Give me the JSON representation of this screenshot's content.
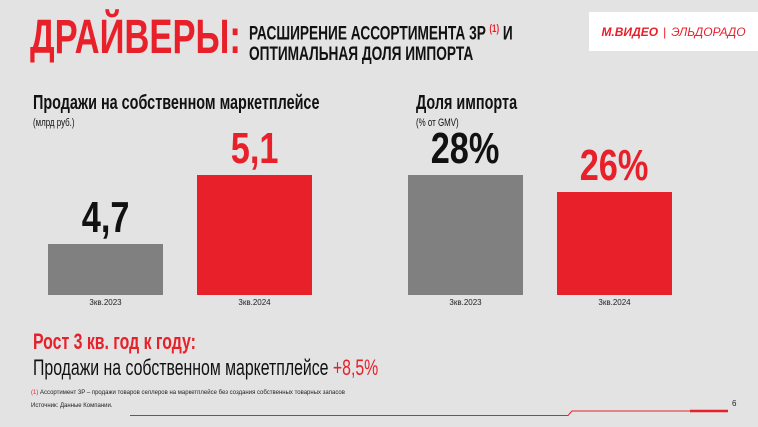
{
  "header": {
    "title_main": "ДРАЙВЕРЫ:",
    "title_sub_line1": "РАСШИРЕНИЕ АССОРТИМЕНТА 3P",
    "title_sub_marker": "(1)",
    "title_sub_line1_end": "И",
    "title_sub_line2": "ОПТИМАЛЬНАЯ ДОЛЯ ИМПОРТА",
    "logo_left": "М.ВИДЕО",
    "logo_sep": "|",
    "logo_right": "ЭЛЬДОРАДО"
  },
  "colors": {
    "accent": "#e8202a",
    "gray_bar": "#808080",
    "background": "#e3e3e3"
  },
  "chart_data": [
    {
      "type": "bar",
      "title": "Продажи на собственном маркетплейсе",
      "subtitle": "(млрд руб.)",
      "categories": [
        "3кв.2023",
        "3кв.2024"
      ],
      "values": [
        4.7,
        5.1
      ],
      "value_labels": [
        "4,7",
        "5,1"
      ],
      "bar_colors": [
        "#808080",
        "#e8202a"
      ],
      "ylim": [
        4.4,
        5.1
      ],
      "grid": false
    },
    {
      "type": "bar",
      "title": "Доля импорта",
      "subtitle": "(% от GMV)",
      "categories": [
        "3кв.2023",
        "3кв.2024"
      ],
      "values": [
        28,
        26
      ],
      "value_labels": [
        "28%",
        "26%"
      ],
      "bar_colors": [
        "#808080",
        "#e8202a"
      ],
      "ylim": [
        14,
        28
      ],
      "grid": false
    }
  ],
  "growth": {
    "title": "Рост 3 кв. год к году:",
    "text": "Продажи на собственном маркетплейсе",
    "value": "+8,5%"
  },
  "footer": {
    "footnote_marker": "(1)",
    "footnote": "Ассортимент 3P – продажи товаров селлеров на маркетплейсе без создания собственных товарных запасов",
    "source": "Источник: Данные Компании.",
    "page_number": "6"
  }
}
